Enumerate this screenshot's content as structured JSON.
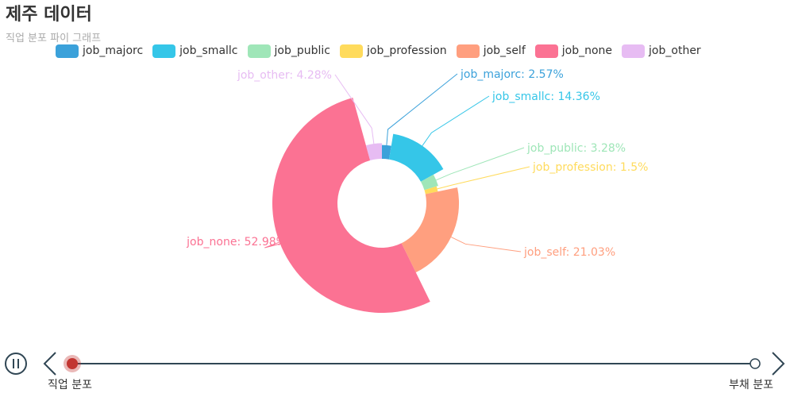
{
  "title": "제주 데이터",
  "subtitle": "직업 분포 파이 그래프",
  "chart_data": {
    "type": "pie",
    "variant": "nightingale-donut",
    "title": "제주 데이터",
    "subtitle": "직업 분포 파이 그래프",
    "series": [
      {
        "name": "job_majorc",
        "value": 2.57,
        "label": "job_majorc: 2.57%",
        "color": "#3ba1da"
      },
      {
        "name": "job_smallc",
        "value": 14.36,
        "label": "job_smallc: 14.36%",
        "color": "#35c6e8"
      },
      {
        "name": "job_public",
        "value": 3.28,
        "label": "job_public: 3.28%",
        "color": "#9fe6b8"
      },
      {
        "name": "job_profession",
        "value": 1.5,
        "label": "job_profession: 1.5%",
        "color": "#ffdb5c"
      },
      {
        "name": "job_self",
        "value": 21.03,
        "label": "job_self: 21.03%",
        "color": "#ff9f7f"
      },
      {
        "name": "job_none",
        "value": 52.98,
        "label": "job_none: 52.98%",
        "color": "#fb7293"
      },
      {
        "name": "job_other",
        "value": 4.28,
        "label": "job_other: 4.28%",
        "color": "#e7bcf3"
      }
    ],
    "legend_position": "top"
  },
  "timeline": {
    "start_label": "직업 분포",
    "end_label": "부채 분포",
    "current_index": 0,
    "pause_icon": "pause-icon",
    "prev_icon": "chevron-left-icon",
    "next_icon": "chevron-right-icon",
    "line_color": "#304654",
    "active_color": "#c23531"
  }
}
